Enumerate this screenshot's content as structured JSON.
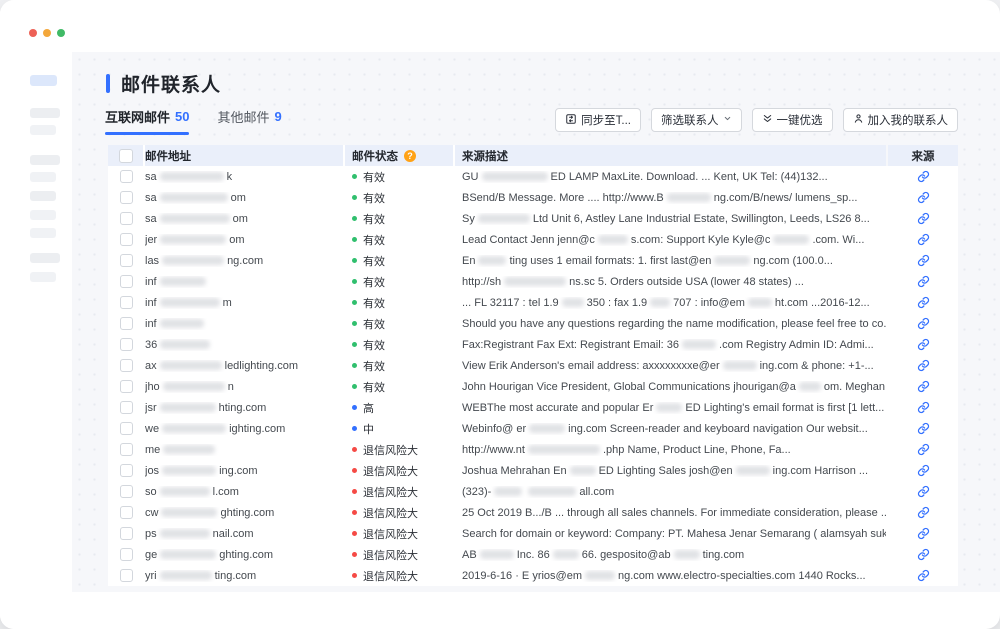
{
  "window": {
    "traffic_lights": [
      {
        "name": "close",
        "color": "#ed6156"
      },
      {
        "name": "minimize",
        "color": "#f3a73b"
      },
      {
        "name": "zoom",
        "color": "#40ba66"
      }
    ]
  },
  "page": {
    "title": "邮件联系人"
  },
  "tabs": [
    {
      "label": "互联网邮件",
      "count": "50",
      "active": true
    },
    {
      "label": "其他邮件",
      "count": "9",
      "active": false
    }
  ],
  "toolbar": {
    "buttons": [
      {
        "label": "同步至T...",
        "icon": "sync-icon"
      },
      {
        "label": "筛选联系人",
        "icon": "chevron-down-icon"
      },
      {
        "label": "一键优选",
        "icon": "double-chevron-down-icon"
      },
      {
        "label": "加入我的联系人",
        "icon": "add-person-icon"
      }
    ]
  },
  "table": {
    "headers": {
      "email": "邮件地址",
      "status": "邮件状态",
      "status_help": "?",
      "desc": "来源描述",
      "source": "来源"
    },
    "status_colors": {
      "valid": "#30bf6e",
      "high": "#3370ff",
      "mid": "#3370ff",
      "risk": "#f54a45"
    },
    "rows": [
      {
        "email": [
          "sa",
          {
            "b": 64
          },
          "k"
        ],
        "status": {
          "level": "valid",
          "label": "有效"
        },
        "desc": [
          "GU",
          {
            "b": 66
          },
          "ED LAMP MaxLite. Download. ... Kent, UK Tel: (44)132..."
        ]
      },
      {
        "email": [
          "sa",
          {
            "b": 68
          },
          "om"
        ],
        "status": {
          "level": "valid",
          "label": "有效"
        },
        "desc": [
          "BSend/B Message. More .... http://www.B",
          {
            "b": 44
          },
          "ng.com/B/news/ lumens_sp..."
        ]
      },
      {
        "email": [
          "sa",
          {
            "b": 70
          },
          "om"
        ],
        "status": {
          "level": "valid",
          "label": "有效"
        },
        "desc": [
          "Sy",
          {
            "b": 52
          },
          "Ltd Unit 6, Astley Lane Industrial Estate, Swillington, Leeds, LS26 8..."
        ]
      },
      {
        "email": [
          "jer",
          {
            "b": 66
          },
          "om"
        ],
        "status": {
          "level": "valid",
          "label": "有效"
        },
        "desc": [
          "Lead Contact Jenn jenn@c",
          {
            "b": 30
          },
          "s.com: Support Kyle Kyle@c",
          {
            "b": 36
          },
          ".com. Wi..."
        ]
      },
      {
        "email": [
          "las",
          {
            "b": 62
          },
          "ng.com"
        ],
        "status": {
          "level": "valid",
          "label": "有效"
        },
        "desc": [
          "En",
          {
            "b": 28
          },
          "ting uses 1 email formats: 1. first last@en",
          {
            "b": 36
          },
          "ng.com (100.0..."
        ]
      },
      {
        "email": [
          "inf",
          {
            "b": 46
          }
        ],
        "status": {
          "level": "valid",
          "label": "有效"
        },
        "desc": [
          "http://sh",
          {
            "b": 62
          },
          "ns.sc 5. Orders outside USA (lower 48 states) ..."
        ]
      },
      {
        "email": [
          "inf",
          {
            "b": 60
          },
          "m"
        ],
        "status": {
          "level": "valid",
          "label": "有效"
        },
        "desc": [
          "... FL 32117 : tel 1.9",
          {
            "b": 22
          },
          "350 : fax 1.9",
          {
            "b": 20
          },
          "707 : info@em",
          {
            "b": 24
          },
          "ht.com ...2016-12..."
        ]
      },
      {
        "email": [
          "inf",
          {
            "b": 44
          }
        ],
        "status": {
          "level": "valid",
          "label": "有效"
        },
        "desc": [
          "Should you have any questions regarding the name modification, please feel free to co..."
        ]
      },
      {
        "email": [
          "36",
          {
            "b": 50
          }
        ],
        "status": {
          "level": "valid",
          "label": "有效"
        },
        "desc": [
          "Fax:Registrant Fax Ext: Registrant Email: 36",
          {
            "b": 34
          },
          ".com Registry Admin ID: Admi..."
        ]
      },
      {
        "email": [
          "ax",
          {
            "b": 62
          },
          "ledlighting.com"
        ],
        "status": {
          "level": "valid",
          "label": "有效"
        },
        "desc": [
          "View Erik Anderson's email address: axxxxxxxxe@er",
          {
            "b": 34
          },
          "ing.com & phone: +1-..."
        ]
      },
      {
        "email": [
          "jho",
          {
            "b": 62
          },
          "n"
        ],
        "status": {
          "level": "valid",
          "label": "有效"
        },
        "desc": [
          "John Hourigan Vice President, Global Communications jhourigan@a",
          {
            "b": 22
          },
          "om. Meghan ..."
        ]
      },
      {
        "email": [
          "jsr",
          {
            "b": 56
          },
          "hting.com"
        ],
        "status": {
          "level": "high",
          "label": "高"
        },
        "desc": [
          "WEBThe most accurate and popular Er",
          {
            "b": 26
          },
          "ED Lighting's email format is first [1 lett..."
        ]
      },
      {
        "email": [
          "we",
          {
            "b": 64
          },
          "ighting.com"
        ],
        "status": {
          "level": "mid",
          "label": "中"
        },
        "desc": [
          "Webinfo@ er",
          {
            "b": 36
          },
          "ing.com Screen-reader and keyboard navigation Our websit..."
        ]
      },
      {
        "email": [
          "me",
          {
            "b": 52
          }
        ],
        "status": {
          "level": "risk",
          "label": "退信风险大"
        },
        "desc": [
          "http://www.nt",
          {
            "b": 72
          },
          ".php Name, Product Line, Phone, Fa..."
        ]
      },
      {
        "email": [
          "jos",
          {
            "b": 54
          },
          "ing.com"
        ],
        "status": {
          "level": "risk",
          "label": "退信风险大"
        },
        "desc": [
          "Joshua Mehrahan En",
          {
            "b": 26
          },
          "ED Lighting Sales josh@en",
          {
            "b": 34
          },
          "ing.com Harrison ..."
        ]
      },
      {
        "email": [
          "so",
          {
            "b": 50
          },
          "l.com"
        ],
        "status": {
          "level": "risk",
          "label": "退信风险大"
        },
        "desc": [
          "(323)-",
          {
            "b": 28
          },
          {
            "b": 48
          },
          "all.com"
        ]
      },
      {
        "email": [
          "cw",
          {
            "b": 56
          },
          "ghting.com"
        ],
        "status": {
          "level": "risk",
          "label": "退信风险大"
        },
        "desc": [
          "25 Oct 2019 B.../B ... through all sales channels. For immediate consideration, please ..."
        ]
      },
      {
        "email": [
          "ps",
          {
            "b": 50
          },
          "nail.com"
        ],
        "status": {
          "level": "risk",
          "label": "退信风险大"
        },
        "desc": [
          "Search for domain or keyword: Company: PT. Mahesa Jenar Semarang ( alamsyah suk..."
        ]
      },
      {
        "email": [
          "ge",
          {
            "b": 56
          },
          "ghting.com"
        ],
        "status": {
          "level": "risk",
          "label": "退信风险大"
        },
        "desc": [
          "AB",
          {
            "b": 34
          },
          "Inc. 86",
          {
            "b": 26
          },
          "66. gesposito@ab",
          {
            "b": 26
          },
          "ting.com"
        ]
      },
      {
        "email": [
          "yri",
          {
            "b": 52
          },
          "ting.com"
        ],
        "status": {
          "level": "risk",
          "label": "退信风险大"
        },
        "desc": [
          "2019-6-16 · E yrios@em",
          {
            "b": 30
          },
          "ng.com www.electro-specialties.com 1440 Rocks..."
        ]
      }
    ]
  }
}
